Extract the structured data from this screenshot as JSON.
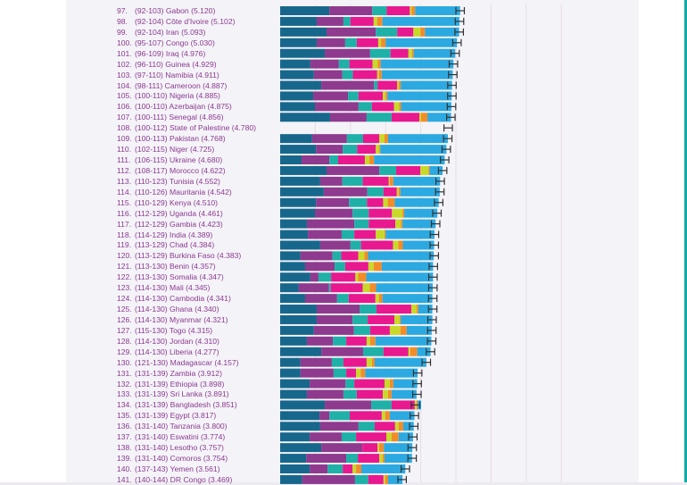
{
  "chart_data": {
    "type": "bar",
    "orientation": "horizontal",
    "stacked": true,
    "xlim": [
      0,
      8
    ],
    "grid": true,
    "legend": "none",
    "segment_names": [
      "GDP per capita",
      "Social support",
      "Healthy life expectancy",
      "Freedom",
      "Generosity",
      "Perceptions of corruption",
      "Dystopia + residual"
    ],
    "colors": [
      "#17678c",
      "#8e3a8e",
      "#1fb0a8",
      "#e8188f",
      "#c8d92a",
      "#f28c28",
      "#2ca9e1"
    ],
    "error_color": "#333333",
    "rows": [
      {
        "rank": "97.",
        "range": "(92-103)",
        "country": "Gabon",
        "score": "(5.120)",
        "value": 5.12,
        "segments": [
          1.4,
          1.22,
          0.41,
          0.66,
          0.05,
          0.1,
          1.28
        ]
      },
      {
        "rank": "98.",
        "range": "(92-104)",
        "country": "Côte d'Ivoire",
        "score": "(5.102)",
        "value": 5.102,
        "segments": [
          1.04,
          0.76,
          0.2,
          0.66,
          0.1,
          0.15,
          2.19
        ]
      },
      {
        "rank": "99.",
        "range": "(92-104)",
        "country": "Iran",
        "score": "(5.093)",
        "value": 5.093,
        "segments": [
          1.32,
          1.4,
          0.61,
          0.46,
          0.2,
          0.13,
          0.97
        ]
      },
      {
        "rank": "100.",
        "range": "(95-107)",
        "country": "Congo",
        "score": "(5.030)",
        "value": 5.03,
        "segments": [
          1.04,
          0.81,
          0.33,
          0.61,
          0.08,
          0.13,
          2.03
        ]
      },
      {
        "rank": "101.",
        "range": "(96-109)",
        "country": "Iraq",
        "score": "(4.976)",
        "value": 4.976,
        "segments": [
          1.27,
          1.29,
          0.58,
          0.51,
          0.1,
          0.05,
          1.18
        ]
      },
      {
        "rank": "102.",
        "range": "(96-110)",
        "country": "Guinea",
        "score": "(4.929)",
        "value": 4.929,
        "segments": [
          0.86,
          0.81,
          0.3,
          0.66,
          0.15,
          0.08,
          2.07
        ]
      },
      {
        "rank": "103.",
        "range": "(97-110)",
        "country": "Namibia",
        "score": "(4.911)",
        "value": 4.911,
        "segments": [
          0.96,
          0.81,
          0.3,
          0.69,
          0.05,
          0.08,
          2.02
        ]
      },
      {
        "rank": "104.",
        "range": "(98-111)",
        "country": "Cameroon",
        "score": "(4.887)",
        "value": 4.887,
        "segments": [
          1.17,
          1.5,
          0.1,
          0.56,
          0.05,
          0.05,
          1.46
        ]
      },
      {
        "rank": "105.",
        "range": "(100-110)",
        "country": "Nigeria",
        "score": "(4.885)",
        "value": 4.885,
        "segments": [
          0.94,
          0.99,
          0.3,
          0.69,
          0.08,
          0.05,
          1.83
        ]
      },
      {
        "rank": "106.",
        "range": "(100-110)",
        "country": "Azerbaijan",
        "score": "(4.875)",
        "value": 4.875,
        "segments": [
          0.99,
          1.24,
          0.38,
          0.63,
          0.15,
          0.05,
          1.43
        ]
      },
      {
        "rank": "107.",
        "range": "(100-111)",
        "country": "Senegal",
        "score": "(4.856)",
        "value": 4.856,
        "segments": [
          1.42,
          1.04,
          0.71,
          0.79,
          0.05,
          0.18,
          0.67
        ]
      },
      {
        "rank": "108.",
        "range": "(100-112)",
        "country": "State of Palestine",
        "score": "(4.780)",
        "value": 4.78,
        "segments": [
          0,
          0,
          0,
          0,
          0,
          0,
          0
        ]
      },
      {
        "rank": "109.",
        "range": "(100-113)",
        "country": "Pakistan",
        "score": "(4.768)",
        "value": 4.768,
        "segments": [
          0.91,
          0.99,
          0.46,
          0.46,
          0.15,
          0.1,
          1.7
        ]
      },
      {
        "rank": "110.",
        "range": "(102-115)",
        "country": "Niger",
        "score": "(4.725)",
        "value": 4.725,
        "segments": [
          1.02,
          0.76,
          0.41,
          0.53,
          0.1,
          0.03,
          1.88
        ]
      },
      {
        "rank": "111.",
        "range": "(106-115)",
        "country": "Ukraine",
        "score": "(4.680)",
        "value": 4.68,
        "segments": [
          0.61,
          0.79,
          0.25,
          0.76,
          0.13,
          0.13,
          2.01
        ]
      },
      {
        "rank": "112.",
        "range": "(108-117)",
        "country": "Morocco",
        "score": "(4.622)",
        "value": 4.622,
        "segments": [
          1.32,
          1.5,
          0.48,
          0.69,
          0.23,
          0.03,
          0.37
        ]
      },
      {
        "rank": "113.",
        "range": "(110-123)",
        "country": "Tunisia",
        "score": "(4.552)",
        "value": 4.552,
        "segments": [
          1.14,
          0.63,
          0.58,
          0.74,
          0.03,
          0.1,
          1.33
        ]
      },
      {
        "rank": "114.",
        "range": "(110-126)",
        "country": "Mauritania",
        "score": "(4.542)",
        "value": 4.542,
        "segments": [
          1.24,
          1.24,
          0.46,
          0.38,
          0.05,
          0.05,
          1.12
        ]
      },
      {
        "rank": "115.",
        "range": "(110-129)",
        "country": "Kenya",
        "score": "(4.510)",
        "value": 4.51,
        "segments": [
          1.02,
          0.94,
          0.51,
          0.46,
          0.13,
          0.2,
          1.25
        ]
      },
      {
        "rank": "116.",
        "range": "(112-129)",
        "country": "Uganda",
        "score": "(4.461)",
        "value": 4.461,
        "segments": [
          0.99,
          1.07,
          0.46,
          0.66,
          0.3,
          0.05,
          0.94
        ]
      },
      {
        "rank": "117.",
        "range": "(112-129)",
        "country": "Gambia",
        "score": "(4.423)",
        "value": 4.423,
        "segments": [
          0.76,
          1.35,
          0.41,
          0.76,
          0.15,
          0.05,
          0.94
        ]
      },
      {
        "rank": "118.",
        "range": "(114-129)",
        "country": "India",
        "score": "(4.389)",
        "value": 4.389,
        "segments": [
          0.79,
          0.96,
          0.36,
          0.61,
          0.25,
          0.03,
          1.39
        ]
      },
      {
        "rank": "119.",
        "range": "(113-129)",
        "country": "Chad",
        "score": "(4.384)",
        "value": 4.384,
        "segments": [
          1.14,
          0.86,
          0.3,
          0.91,
          0.15,
          0.13,
          0.89
        ]
      },
      {
        "rank": "120.",
        "range": "(113-129)",
        "country": "Burkina Faso",
        "score": "(4.383)",
        "value": 4.383,
        "segments": [
          0.58,
          0.91,
          0.25,
          0.48,
          0.18,
          0.1,
          1.87
        ]
      },
      {
        "rank": "121.",
        "range": "(113-130)",
        "country": "Benin",
        "score": "(4.357)",
        "value": 4.357,
        "segments": [
          0.71,
          0.84,
          0.3,
          0.66,
          0.15,
          0.23,
          1.46
        ]
      },
      {
        "rank": "122.",
        "range": "(113-130)",
        "country": "Somalia",
        "score": "(4.347)",
        "value": 4.347,
        "segments": [
          0.86,
          0.23,
          0.36,
          0.69,
          0.08,
          0.23,
          1.9
        ]
      },
      {
        "rank": "123.",
        "range": "(114-130)",
        "country": "Mali",
        "score": "(4.345)",
        "value": 4.345,
        "segments": [
          0.53,
          0.86,
          0.05,
          0.91,
          0.2,
          0.18,
          1.61
        ]
      },
      {
        "rank": "124.",
        "range": "(114-130)",
        "country": "Cambodia",
        "score": "(4.341)",
        "value": 4.341,
        "segments": [
          0.71,
          0.91,
          0.33,
          0.76,
          0.1,
          0.1,
          1.42
        ]
      },
      {
        "rank": "125.",
        "range": "(114-130)",
        "country": "Ghana",
        "score": "(4.340)",
        "value": 4.34,
        "segments": [
          1.04,
          1.22,
          0.48,
          0.99,
          0.15,
          0.05,
          0.4
        ]
      },
      {
        "rank": "126.",
        "range": "(114-130)",
        "country": "Myanmar",
        "score": "(4.321)",
        "value": 4.321,
        "segments": [
          1.04,
          1.02,
          0.43,
          0.76,
          0.15,
          0.03,
          0.9
        ]
      },
      {
        "rank": "127.",
        "range": "(115-130)",
        "country": "Togo",
        "score": "(4.315)",
        "value": 4.315,
        "segments": [
          0.96,
          1.14,
          0.46,
          0.56,
          0.3,
          0.18,
          0.71
        ]
      },
      {
        "rank": "128.",
        "range": "(114-130)",
        "country": "Jordan",
        "score": "(4.310)",
        "value": 4.31,
        "segments": [
          0.76,
          0.74,
          0.38,
          0.58,
          0.1,
          0.15,
          1.59
        ]
      },
      {
        "rank": "129.",
        "range": "(114-130)",
        "country": "Liberia",
        "score": "(4.277)",
        "value": 4.277,
        "segments": [
          1.17,
          1.19,
          0.58,
          0.71,
          0.05,
          0.2,
          0.38
        ]
      },
      {
        "rank": "130.",
        "range": "(121-130)",
        "country": "Madagascar",
        "score": "(4.157)",
        "value": 4.157,
        "segments": [
          0.58,
          0.89,
          0.33,
          0.66,
          0.15,
          0.08,
          1.47
        ]
      },
      {
        "rank": "131.",
        "range": "(131-139)",
        "country": "Zambia",
        "score": "(3.912)",
        "value": 3.912,
        "segments": [
          0.58,
          0.94,
          0.36,
          0.28,
          0.13,
          0.13,
          1.49
        ]
      },
      {
        "rank": "132.",
        "range": "(131-139)",
        "country": "Ethiopia",
        "score": "(3.898)",
        "value": 3.898,
        "segments": [
          0.84,
          1.02,
          0.25,
          0.86,
          0.15,
          0.1,
          0.68
        ]
      },
      {
        "rank": "133.",
        "range": "(131-139)",
        "country": "Sri Lanka",
        "score": "(3.891)",
        "value": 3.891,
        "segments": [
          0.76,
          1.04,
          0.38,
          0.74,
          0.15,
          0.1,
          0.71
        ]
      },
      {
        "rank": "134.",
        "range": "(131-139)",
        "country": "Bangladesh",
        "score": "(3.851)",
        "value": 3.851,
        "segments": [
          1.27,
          1.32,
          0.58,
          0.66,
          0.05,
          0.03,
          0.1
        ]
      },
      {
        "rank": "135.",
        "range": "(131-139)",
        "country": "Egypt",
        "score": "(3.817)",
        "value": 3.817,
        "segments": [
          1.12,
          0.28,
          0.58,
          0.91,
          0.1,
          0.13,
          0.7
        ]
      },
      {
        "rank": "136.",
        "range": "(131-140)",
        "country": "Tanzania",
        "score": "(3.800)",
        "value": 3.8,
        "segments": [
          1.14,
          1.09,
          0.46,
          0.58,
          0.1,
          0.13,
          0.3
        ]
      },
      {
        "rank": "137.",
        "range": "(131-140)",
        "country": "Eswatini",
        "score": "(3.774)",
        "value": 3.774,
        "segments": [
          0.84,
          0.91,
          0.41,
          0.86,
          0.15,
          0.2,
          0.41
        ]
      },
      {
        "rank": "138.",
        "range": "(131-140)",
        "country": "Lesotho",
        "score": "(3.757)",
        "value": 3.757,
        "segments": [
          1.17,
          1.17,
          0.0,
          0.43,
          0.05,
          0.13,
          0.81
        ]
      },
      {
        "rank": "139.",
        "range": "(131-140)",
        "country": "Comoros",
        "score": "(3.754)",
        "value": 3.754,
        "segments": [
          0.74,
          1.14,
          0.33,
          0.61,
          0.1,
          0.05,
          0.78
        ]
      },
      {
        "rank": "140.",
        "range": "(137-143)",
        "country": "Yemen",
        "score": "(3.561)",
        "value": 3.561,
        "segments": [
          0.84,
          0.51,
          0.43,
          0.28,
          0.1,
          0.15,
          1.25
        ]
      },
      {
        "rank": "141.",
        "range": "(140-144)",
        "country": "DR Congo",
        "score": "(3.469)",
        "value": 3.469,
        "segments": [
          0.63,
          1.5,
          0.38,
          0.43,
          0.05,
          0.08,
          0.41
        ]
      }
    ]
  }
}
